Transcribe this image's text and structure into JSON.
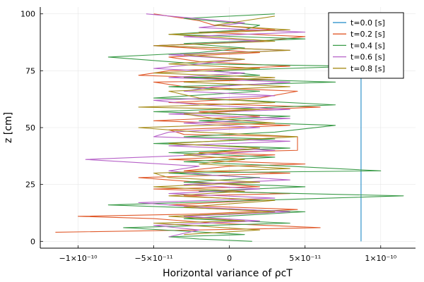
{
  "chart_data": {
    "type": "line",
    "title": "",
    "xlabel": "Horizontal variance of ρcT",
    "ylabel": "z [cm]",
    "xlim": [
      -1.25e-10,
      1.23e-10
    ],
    "ylim": [
      -3,
      103
    ],
    "grid": true,
    "legend_position": "top-right",
    "x_ticks": [
      {
        "value": -1e-10,
        "label": "−1×10⁻¹⁰"
      },
      {
        "value": -5e-11,
        "label": "−5×10⁻¹¹"
      },
      {
        "value": 0,
        "label": "0"
      },
      {
        "value": 5e-11,
        "label": "5×10⁻¹¹"
      },
      {
        "value": 1e-10,
        "label": "1×10⁻¹⁰"
      }
    ],
    "y_ticks": [
      {
        "value": 0,
        "label": "0"
      },
      {
        "value": 25,
        "label": "25"
      },
      {
        "value": 50,
        "label": "50"
      },
      {
        "value": 75,
        "label": "75"
      },
      {
        "value": 100,
        "label": "100"
      }
    ],
    "series": [
      {
        "name": "t=0.0 [s]",
        "color": "#1f8ac6",
        "points": [
          [
            8.7e-11,
            0
          ],
          [
            8.7e-11,
            100
          ]
        ]
      },
      {
        "name": "t=0.2 [s]",
        "color": "#e0592a",
        "points": [
          [
            -1.15e-10,
            4
          ],
          [
            -2e-11,
            5
          ],
          [
            6e-11,
            6
          ],
          [
            -1e-11,
            8
          ],
          [
            -5e-11,
            10
          ],
          [
            -1e-10,
            11
          ],
          [
            -2e-11,
            12
          ],
          [
            4.5e-11,
            14
          ],
          [
            -4e-11,
            16
          ],
          [
            2e-11,
            18
          ],
          [
            -3e-11,
            20
          ],
          [
            4e-11,
            21
          ],
          [
            -5e-11,
            23
          ],
          [
            2e-11,
            24
          ],
          [
            -2e-11,
            26
          ],
          [
            -6e-11,
            28
          ],
          [
            4e-11,
            30
          ],
          [
            -3e-11,
            31
          ],
          [
            0,
            33
          ],
          [
            5e-11,
            34
          ],
          [
            -4e-11,
            36
          ],
          [
            3e-11,
            38
          ],
          [
            -2e-11,
            39
          ],
          [
            4.5e-11,
            40
          ],
          [
            4.5e-11,
            46
          ],
          [
            -3e-11,
            47
          ],
          [
            -4e-11,
            49
          ],
          [
            4e-11,
            51
          ],
          [
            -5e-11,
            53
          ],
          [
            2e-11,
            55
          ],
          [
            -2e-11,
            57
          ],
          [
            6e-11,
            59
          ],
          [
            -4e-11,
            61
          ],
          [
            2e-11,
            63
          ],
          [
            4.5e-11,
            66
          ],
          [
            -3e-11,
            68
          ],
          [
            -5e-11,
            70
          ],
          [
            3e-11,
            71
          ],
          [
            -6e-11,
            73
          ],
          [
            -4e-11,
            75
          ],
          [
            4e-11,
            77
          ],
          [
            -2e-11,
            79
          ],
          [
            -4e-11,
            81
          ],
          [
            2e-11,
            83
          ],
          [
            -5e-11,
            86
          ],
          [
            2e-11,
            88
          ],
          [
            5e-11,
            90
          ],
          [
            -2e-11,
            92
          ],
          [
            3e-11,
            93
          ],
          [
            -1e-11,
            95
          ],
          [
            -2e-11,
            97
          ],
          [
            -5e-11,
            100
          ]
        ]
      },
      {
        "name": "t=0.4 [s]",
        "color": "#3a9b48",
        "points": [
          [
            1.5e-11,
            0
          ],
          [
            -2e-11,
            1
          ],
          [
            -4e-11,
            2
          ],
          [
            1e-11,
            3
          ],
          [
            -7e-11,
            6
          ],
          [
            4e-11,
            8
          ],
          [
            -3e-11,
            10
          ],
          [
            5e-11,
            13
          ],
          [
            -8e-11,
            16
          ],
          [
            1.15e-10,
            20
          ],
          [
            -2e-11,
            22
          ],
          [
            5e-11,
            24
          ],
          [
            -3e-11,
            26
          ],
          [
            2e-11,
            28
          ],
          [
            -4e-11,
            30
          ],
          [
            1e-10,
            31
          ],
          [
            4e-11,
            33
          ],
          [
            -3e-11,
            35
          ],
          [
            3e-11,
            37
          ],
          [
            -4e-11,
            39
          ],
          [
            4e-11,
            41
          ],
          [
            -5e-11,
            43
          ],
          [
            3e-11,
            45
          ],
          [
            -3e-11,
            46
          ],
          [
            3e-11,
            48
          ],
          [
            7e-11,
            51
          ],
          [
            -2e-11,
            53
          ],
          [
            4e-11,
            55
          ],
          [
            -5e-11,
            57
          ],
          [
            7e-11,
            60
          ],
          [
            1e-11,
            62
          ],
          [
            -5e-11,
            63
          ],
          [
            2e-11,
            66
          ],
          [
            -4e-11,
            68
          ],
          [
            7e-11,
            70
          ],
          [
            -3e-11,
            72
          ],
          [
            2e-11,
            73
          ],
          [
            -1e-11,
            75
          ],
          [
            8.5e-11,
            77
          ],
          [
            -2e-11,
            78
          ],
          [
            -8e-11,
            81
          ],
          [
            -2e-11,
            83
          ],
          [
            1e-11,
            85
          ],
          [
            -3e-11,
            87
          ],
          [
            5e-11,
            89
          ],
          [
            -4e-11,
            91
          ],
          [
            1e-11,
            93
          ],
          [
            2e-11,
            95
          ],
          [
            -3e-11,
            98
          ],
          [
            3e-11,
            100
          ]
        ]
      },
      {
        "name": "t=0.6 [s]",
        "color": "#b661c8",
        "points": [
          [
            -4e-11,
            2
          ],
          [
            -2e-11,
            5
          ],
          [
            -5e-11,
            7
          ],
          [
            2e-11,
            9
          ],
          [
            -3e-11,
            11
          ],
          [
            4e-11,
            13
          ],
          [
            -2e-11,
            15
          ],
          [
            -6e-11,
            17
          ],
          [
            3e-11,
            19
          ],
          [
            -4e-11,
            21
          ],
          [
            2e-11,
            23
          ],
          [
            -3e-11,
            25
          ],
          [
            4e-11,
            27
          ],
          [
            -1e-11,
            29
          ],
          [
            -4e-11,
            31
          ],
          [
            -2e-11,
            33
          ],
          [
            -9.5e-11,
            36
          ],
          [
            -2e-11,
            38
          ],
          [
            3e-11,
            40
          ],
          [
            -4e-11,
            42
          ],
          [
            4e-11,
            44
          ],
          [
            -5e-11,
            46
          ],
          [
            -4e-11,
            48
          ],
          [
            2e-11,
            50
          ],
          [
            -3e-11,
            52
          ],
          [
            4e-11,
            54
          ],
          [
            -4e-11,
            56
          ],
          [
            4e-11,
            58
          ],
          [
            -2e-11,
            60
          ],
          [
            -5e-11,
            62
          ],
          [
            3e-11,
            64
          ],
          [
            -3e-11,
            66
          ],
          [
            -1e-11,
            68
          ],
          [
            4e-11,
            70
          ],
          [
            -4e-11,
            72
          ],
          [
            1e-11,
            74
          ],
          [
            -5e-11,
            76
          ],
          [
            -2e-11,
            78
          ],
          [
            1e-11,
            80
          ],
          [
            -4e-11,
            82
          ],
          [
            4e-11,
            84
          ],
          [
            -5e-11,
            86
          ],
          [
            2e-11,
            88
          ],
          [
            -3e-11,
            90
          ],
          [
            5e-11,
            92
          ],
          [
            -2e-11,
            94
          ],
          [
            1e-11,
            96
          ],
          [
            -5.5e-11,
            100
          ]
        ]
      },
      {
        "name": "t=0.8 [s]",
        "color": "#a78d1c",
        "points": [
          [
            -3e-11,
            3
          ],
          [
            2e-11,
            5
          ],
          [
            -5e-11,
            8
          ],
          [
            1e-11,
            9
          ],
          [
            -4e-11,
            11
          ],
          [
            3e-11,
            13
          ],
          [
            -3e-11,
            15
          ],
          [
            3e-11,
            18
          ],
          [
            -4e-11,
            20
          ],
          [
            1e-11,
            22
          ],
          [
            -5e-11,
            24
          ],
          [
            2e-11,
            26
          ],
          [
            -4e-11,
            28
          ],
          [
            -5e-11,
            30
          ],
          [
            4e-11,
            32
          ],
          [
            -2e-11,
            34
          ],
          [
            1e-11,
            36
          ],
          [
            -3e-11,
            38
          ],
          [
            2e-11,
            41
          ],
          [
            -4e-11,
            43
          ],
          [
            4.5e-11,
            46
          ],
          [
            -2e-11,
            48
          ],
          [
            -6e-11,
            50
          ],
          [
            3e-11,
            52
          ],
          [
            -1e-11,
            54
          ],
          [
            -3e-11,
            56
          ],
          [
            2e-11,
            58
          ],
          [
            -6e-11,
            59
          ],
          [
            3e-11,
            61
          ],
          [
            -2e-11,
            63
          ],
          [
            -4e-11,
            66
          ],
          [
            4e-11,
            68
          ],
          [
            -3e-11,
            70
          ],
          [
            3e-11,
            72
          ],
          [
            -5e-11,
            74
          ],
          [
            2e-11,
            76
          ],
          [
            -4e-11,
            78
          ],
          [
            1e-11,
            80
          ],
          [
            -3e-11,
            82
          ],
          [
            4e-11,
            84
          ],
          [
            -5e-11,
            86
          ],
          [
            3e-11,
            88
          ],
          [
            -4e-11,
            91
          ],
          [
            4e-11,
            93
          ],
          [
            -1e-11,
            95
          ],
          [
            1e-11,
            97
          ],
          [
            3e-11,
            99
          ]
        ]
      }
    ]
  }
}
